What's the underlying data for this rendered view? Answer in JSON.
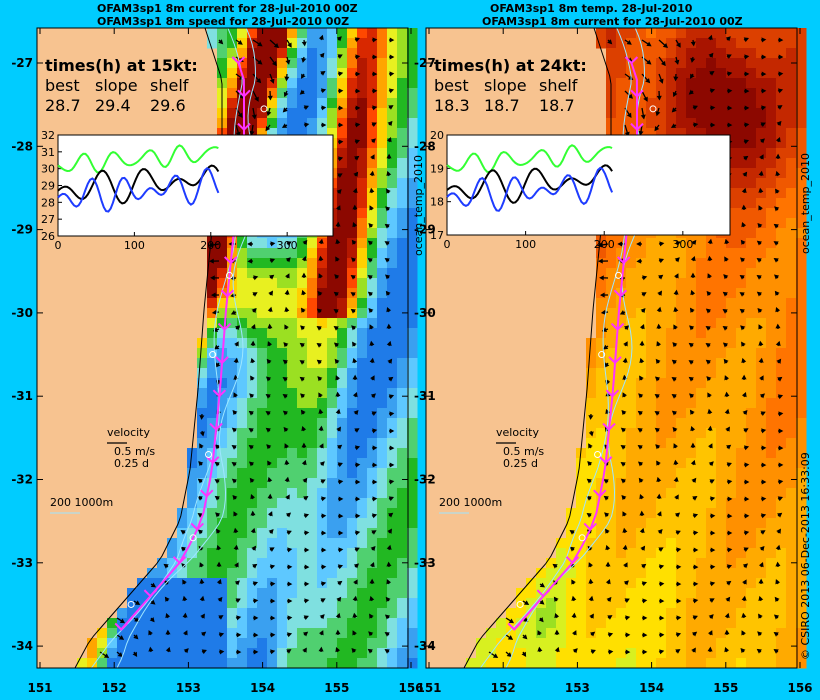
{
  "titles": {
    "left": [
      "OFAM3sp1 8m current for 28-Jul-2010 00Z",
      "OFAM3sp1 8m speed for 28-Jul-2010 00Z"
    ],
    "right": [
      "OFAM3sp1 8m temp. 28-Jul-2010",
      "OFAM3sp1 8m current for 28-Jul-2010 00Z"
    ]
  },
  "axes": {
    "lat_ticks": [
      "-27",
      "-28",
      "-29",
      "-30",
      "-31",
      "-32",
      "-33",
      "-34"
    ],
    "lon_ticks": [
      "151",
      "152",
      "153",
      "154",
      "155",
      "156"
    ]
  },
  "left_panel": {
    "times_title": "times(h) at 15kt:",
    "col_labels": [
      "best",
      "slope",
      "shelf"
    ],
    "col_values": [
      "28.7",
      "29.4",
      "29.6"
    ],
    "inset": {
      "y_ticks": [
        "32",
        "31",
        "30",
        "29",
        "28",
        "27",
        "26"
      ],
      "x_ticks": [
        "0",
        "100",
        "200",
        "300"
      ]
    },
    "velocity": [
      "velocity",
      "0.5 m/s",
      "0.25 d"
    ],
    "depth": [
      "200",
      "1000m"
    ]
  },
  "right_panel": {
    "times_title": "times(h) at 24kt:",
    "col_labels": [
      "best",
      "slope",
      "shelf"
    ],
    "col_values": [
      "18.3",
      "18.7",
      "18.7"
    ],
    "inset": {
      "y_ticks": [
        "20",
        "19",
        "18",
        "17"
      ],
      "x_ticks": [
        "0",
        "100",
        "200",
        "300"
      ]
    },
    "velocity": [
      "velocity",
      "0.5 m/s",
      "0.25 d"
    ],
    "depth": [
      "200",
      "1000m"
    ]
  },
  "side_labels": {
    "mid": "ocean_temp_2010",
    "right": "ocean_temp_2010",
    "credit": "© CSIRO 2013   06-Dec-2013 16:33:09"
  },
  "colors": {
    "background": "#00ccff",
    "land": "#f7c390",
    "route": "#ff33ff",
    "series_green": "#33ff33",
    "series_black": "#000000",
    "series_blue": "#1e3cff"
  }
}
